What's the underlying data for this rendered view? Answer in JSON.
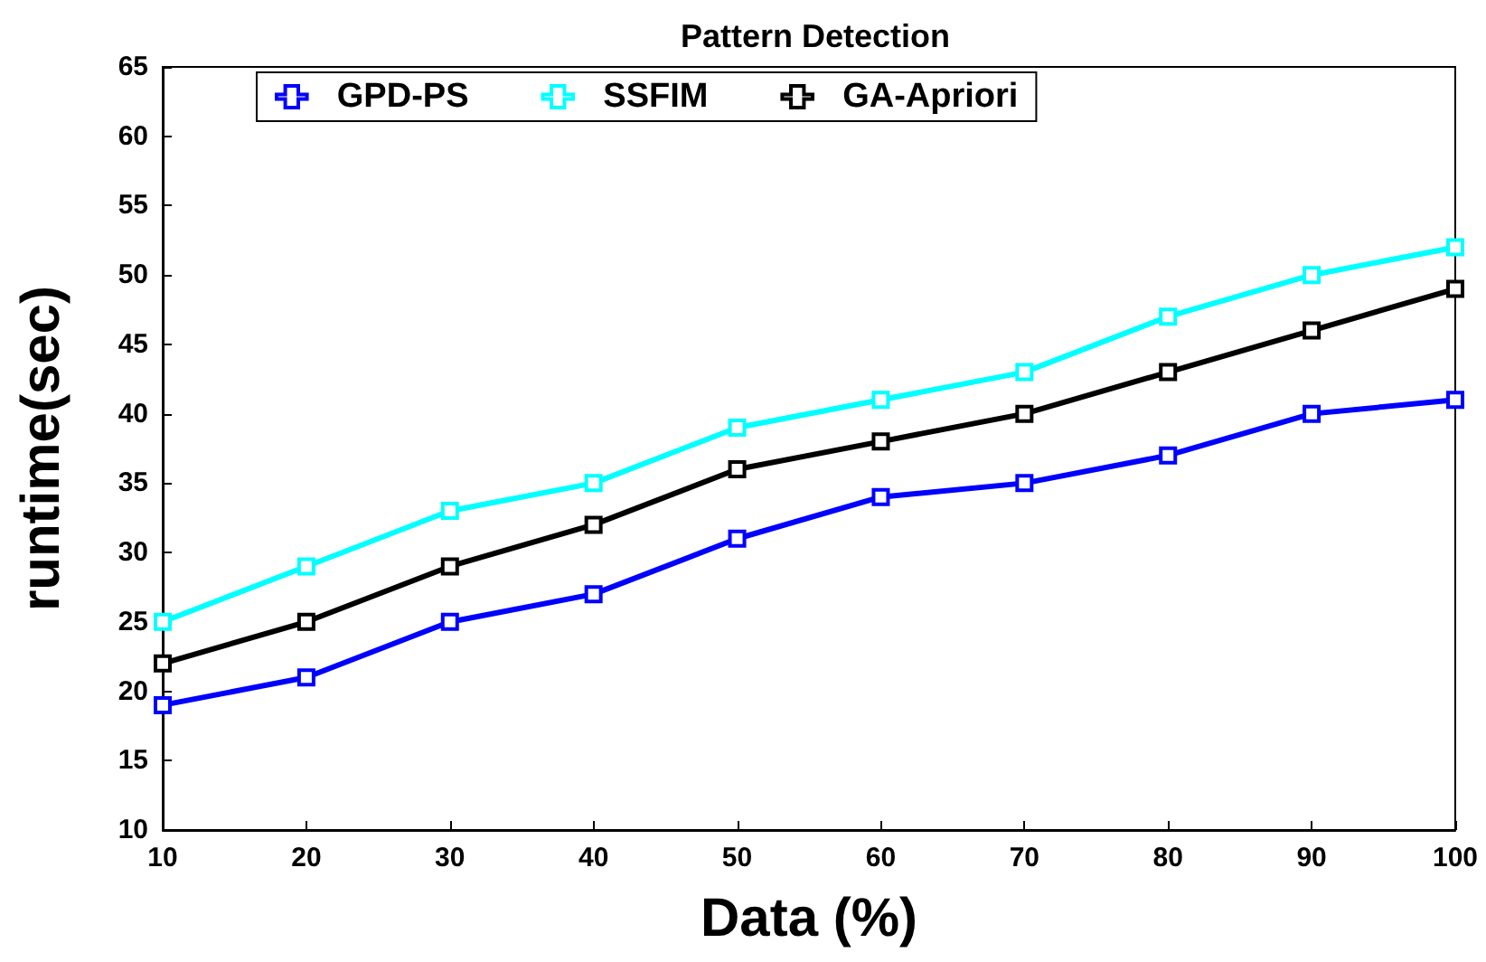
{
  "chart_data": {
    "type": "line",
    "title": "Pattern Detection",
    "xlabel": "Data (%)",
    "ylabel": "runtime(sec)",
    "x": [
      10,
      20,
      30,
      40,
      50,
      60,
      70,
      80,
      90,
      100
    ],
    "series": [
      {
        "name": "GPD-PS",
        "color": "#0000ff",
        "values": [
          19,
          21,
          25,
          27,
          31,
          34,
          35,
          37,
          40,
          41
        ]
      },
      {
        "name": "SSFIM",
        "color": "#00ffff",
        "values": [
          25,
          29,
          33,
          35,
          39,
          41,
          43,
          47,
          50,
          52
        ]
      },
      {
        "name": "GA-Apriori",
        "color": "#000000",
        "values": [
          22,
          25,
          29,
          32,
          36,
          38,
          40,
          43,
          46,
          49
        ]
      }
    ],
    "xlim": [
      10,
      100
    ],
    "xticks": [
      10,
      20,
      30,
      40,
      50,
      60,
      70,
      80,
      90,
      100
    ],
    "ylim": [
      10,
      65
    ],
    "yticks": [
      10,
      15,
      20,
      25,
      30,
      35,
      40,
      45,
      50,
      55,
      60,
      65
    ],
    "grid": false,
    "legend": "top",
    "marker": "square",
    "line_style": "solid"
  }
}
